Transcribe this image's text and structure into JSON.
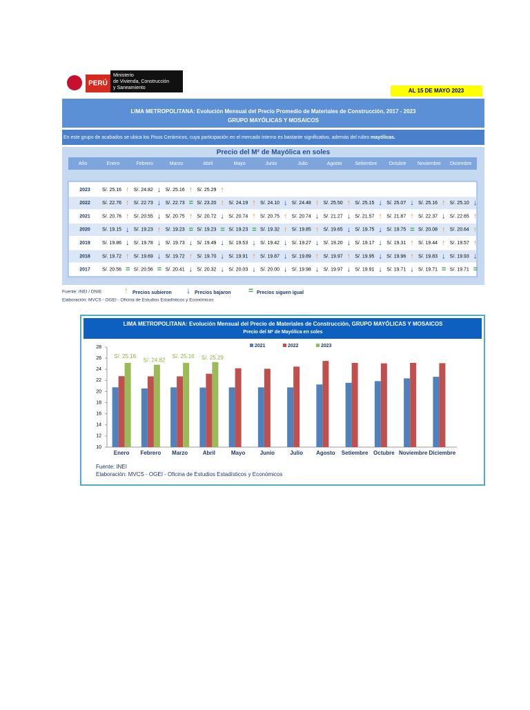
{
  "header": {
    "logo_country": "PERÚ",
    "ministry": [
      "Ministerio",
      "de Vivienda, Construcción",
      "y Saneamiento"
    ],
    "date": "AL 15 DE MAYO 2023"
  },
  "title": {
    "line1": "LIMA METROPOLITANA: Evolución Mensual del Precio Promedio de Materiales de Construcción, 2017 - 2023",
    "line2": "GRUPO MAYÓLICAS Y MOSAICOS"
  },
  "intro": {
    "text": "En este grupo de acabados se ubica los Pisos Cerámicos, cuya participación en el mercado interno es bastante significativo, además del rubro ",
    "bold": "mayólicas."
  },
  "table": {
    "title": "Precio del M² de Mayólica en soles",
    "columns": [
      "Año",
      "Enero",
      "Febrero",
      "Marzo",
      "Abril",
      "Mayo",
      "Junio",
      "Julio",
      "Agosto",
      "Setiembre",
      "Octubre",
      "Noviembre",
      "Diciembre"
    ],
    "rows": [
      {
        "year": "2023",
        "cells": [
          "S/. 25.16",
          "S/. 24.82",
          "S/. 25.16",
          "S/. 25.29"
        ],
        "arrows": [
          "↑",
          "↓",
          "↑",
          "↑"
        ]
      },
      {
        "year": "2022",
        "cells": [
          "S/. 22.76",
          "S/. 22.73",
          "S/. 22.73",
          "S/. 23.20",
          "S/. 24.19",
          "S/. 24.10",
          "S/. 24.48",
          "S/. 25.50",
          "S/. 25.15",
          "S/. 25.07",
          "S/. 25.16",
          "S/. 25.10"
        ],
        "arrows": [
          "↑",
          "↓",
          "=",
          "↑",
          "↑",
          "↓",
          "↑",
          "↑",
          "↓",
          "↓",
          "↑",
          "↓"
        ]
      },
      {
        "year": "2021",
        "cells": [
          "S/. 20.76",
          "S/. 20.55",
          "S/. 20.75",
          "S/. 20.72",
          "S/. 20.74",
          "S/. 20.75",
          "S/. 20.74",
          "S/. 21.27",
          "S/. 21.57",
          "S/. 21.87",
          "S/. 22.37",
          "S/. 22.65"
        ],
        "arrows": [
          "↑",
          "↓",
          "↑",
          "↓",
          "↑",
          "↑",
          "↓",
          "↓",
          "↑",
          "↑",
          "↓",
          "↑"
        ]
      },
      {
        "year": "2020",
        "cells": [
          "S/. 19.15",
          "S/. 19.23",
          "S/. 19.23",
          "S/. 19.23",
          "S/. 19.23",
          "S/. 19.32",
          "S/. 19.85",
          "S/. 19.65",
          "S/. 19.75",
          "S/. 19.75",
          "S/. 20.08",
          "S/. 20.64"
        ],
        "arrows": [
          "↓",
          "↑",
          "=",
          "=",
          "=",
          "↑",
          "↑",
          "↓",
          "↓",
          "=",
          "↑",
          "↑"
        ]
      },
      {
        "year": "2019",
        "cells": [
          "S/. 19.86",
          "S/. 19.78",
          "S/. 19.73",
          "S/. 19.49",
          "S/. 19.53",
          "S/. 19.42",
          "S/. 19.27",
          "S/. 19.20",
          "S/. 19.17",
          "S/. 19.31",
          "S/. 19.44",
          "S/. 19.57"
        ],
        "arrows": [
          "↓",
          "↓",
          "↓",
          "↓",
          "↓",
          "↓",
          "↓",
          "↓",
          "↓",
          "↑",
          "↑",
          "↑"
        ]
      },
      {
        "year": "2018",
        "cells": [
          "S/. 19.72",
          "S/. 19.69",
          "S/. 19.72",
          "S/. 19.70",
          "S/. 19.91",
          "S/. 19.87",
          "S/. 19.89",
          "S/. 19.97",
          "S/. 19.95",
          "S/. 19.96",
          "S/. 19.83",
          "S/. 19.93"
        ],
        "arrows": [
          "↑",
          "↓",
          "↑",
          "↓",
          "↑",
          "↓",
          "↑",
          "↑",
          "↓",
          "↑",
          "↓",
          "↓"
        ]
      },
      {
        "year": "2017",
        "cells": [
          "S/. 20.56",
          "S/. 20.56",
          "S/. 20.41",
          "S/. 20.32",
          "S/. 20.03",
          "S/. 20.00",
          "S/. 19.98",
          "S/. 19.97",
          "S/. 19.91",
          "S/. 19.71",
          "S/. 19.71",
          "S/. 19.71"
        ],
        "arrows": [
          "=",
          "=",
          "↓",
          "↓",
          "↓",
          "↓",
          "↓",
          "↓",
          "↓",
          "↓",
          "=",
          "="
        ]
      }
    ]
  },
  "legend": [
    {
      "symbol": "↑",
      "text": "Precios subieron"
    },
    {
      "symbol": "↓",
      "text": "Precios bajaron"
    },
    {
      "symbol": "=",
      "text": "Precios siguen igual"
    }
  ],
  "source": {
    "fuente": "Fuente: INEI / DNIE",
    "elaboracion": "Elaboración: MVCS - OGEI - Oficina de Estudios Estadísticos y Económicos"
  },
  "chart_data": {
    "type": "bar",
    "title": "LIMA METROPOLITANA: Evolución Mensual del Precio de Materiales de Construcción, GRUPO MAYÓLICAS Y MOSAICOS",
    "subtitle": "Precio del M² de Mayólica en soles",
    "categories": [
      "Enero",
      "Febrero",
      "Marzo",
      "Abril",
      "Mayo",
      "Junio",
      "Julio",
      "Agosto",
      "Setiembre",
      "Octubre",
      "Noviembre",
      "Diciembre"
    ],
    "series": [
      {
        "name": "2021",
        "color": "#4f81bd",
        "values": [
          20.76,
          20.55,
          20.75,
          20.72,
          20.74,
          20.75,
          20.74,
          21.27,
          21.57,
          21.87,
          22.37,
          22.65
        ]
      },
      {
        "name": "2022",
        "color": "#c0504d",
        "values": [
          22.76,
          22.73,
          22.73,
          23.2,
          24.19,
          24.1,
          24.48,
          25.5,
          25.15,
          25.07,
          25.16,
          25.1
        ]
      },
      {
        "name": "2023",
        "color": "#9bbb59",
        "values": [
          25.16,
          24.82,
          25.16,
          25.29,
          null,
          null,
          null,
          null,
          null,
          null,
          null,
          null
        ],
        "value_labels": [
          "S/. 25.16",
          "S/. 24.82",
          "S/. 25.16",
          "S/. 25.29",
          null,
          null,
          null,
          null,
          null,
          null,
          null,
          null
        ]
      }
    ],
    "ylim": [
      10,
      28
    ],
    "yticks": [
      10,
      12,
      14,
      16,
      18,
      20,
      22,
      24,
      26,
      28
    ],
    "legend": "top",
    "footer": [
      "Fuente: INEI",
      "Elaboración: MVCS - OGEI - Oficina de Estudios Estadísticos y Económicos"
    ]
  }
}
